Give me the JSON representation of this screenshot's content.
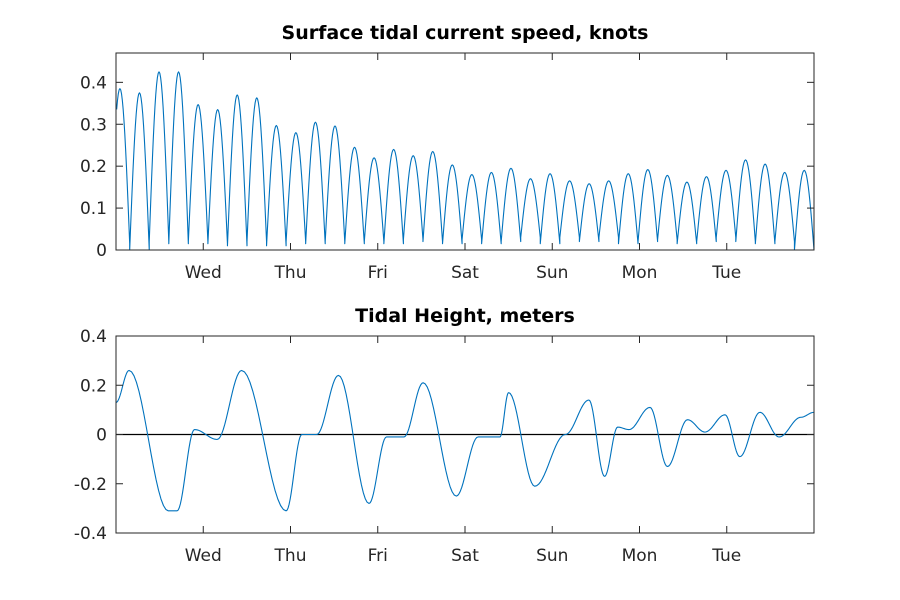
{
  "chart_data": [
    {
      "type": "line",
      "title": "Surface tidal current speed, knots",
      "xlabel": "",
      "ylabel": "",
      "ylim": [
        0,
        0.47
      ],
      "yticks": [
        "0",
        "0.1",
        "0.2",
        "0.3",
        "0.4"
      ],
      "x_tick_labels": [
        "Wed",
        "Thu",
        "Fri",
        "Sat",
        "Sun",
        "Mon",
        "Tue"
      ],
      "x_unit": "days",
      "xlim": [
        0,
        8
      ],
      "grid": false,
      "color": "#0072BD",
      "series": [
        {
          "peaks": [
            0.385,
            0.375,
            0.425,
            0.425,
            0.347,
            0.335,
            0.37,
            0.363,
            0.297,
            0.28,
            0.305,
            0.296,
            0.245,
            0.22,
            0.24,
            0.225,
            0.235,
            0.203,
            0.18,
            0.185,
            0.195,
            0.17,
            0.182,
            0.165,
            0.158,
            0.165,
            0.182,
            0.192,
            0.178,
            0.162,
            0.175,
            0.19,
            0.215,
            0.205,
            0.185,
            0.19
          ],
          "troughs": [
            0.015,
            0.0,
            0.02,
            0.015,
            0.02,
            0.015,
            0.01,
            0.02,
            0.01,
            0.02,
            0.015,
            0.02,
            0.015,
            0.02,
            0.015,
            0.025,
            0.02,
            0.015,
            0.025,
            0.015,
            0.02,
            0.03,
            0.015,
            0.03,
            0.02,
            0.03,
            0.015,
            0.02,
            0.025,
            0.015,
            0.02,
            0.03,
            0.02,
            0.015,
            0.02,
            0.0
          ]
        }
      ]
    },
    {
      "type": "line",
      "title": "Tidal Height, meters",
      "xlabel": "",
      "ylabel": "",
      "ylim": [
        -0.4,
        0.4
      ],
      "yticks": [
        "-0.4",
        "-0.2",
        "0",
        "0.2",
        "0.4"
      ],
      "x_tick_labels": [
        "Wed",
        "Thu",
        "Fri",
        "Sat",
        "Sun",
        "Mon",
        "Tue"
      ],
      "x_unit": "days",
      "xlim": [
        0,
        8
      ],
      "zero_line": true,
      "grid": false,
      "color": "#0072BD",
      "series": [
        {
          "x": [
            0.0,
            0.15,
            0.6,
            0.7,
            0.9,
            1.16,
            1.44,
            1.95,
            2.13,
            2.3,
            2.55,
            2.9,
            3.1,
            3.3,
            3.52,
            3.9,
            4.15,
            4.4,
            4.5,
            4.8,
            5.15,
            5.42,
            5.6,
            5.75,
            5.88,
            6.12,
            6.32,
            6.55,
            6.75,
            6.98,
            7.15,
            7.38,
            7.6,
            7.85,
            8.0
          ],
          "y": [
            0.13,
            0.26,
            -0.31,
            -0.31,
            0.02,
            -0.02,
            0.26,
            -0.31,
            0.0,
            0.0,
            0.24,
            -0.28,
            -0.01,
            -0.01,
            0.21,
            -0.25,
            -0.01,
            -0.01,
            0.17,
            -0.21,
            0.0,
            0.14,
            -0.17,
            0.03,
            0.02,
            0.11,
            -0.13,
            0.06,
            0.01,
            0.08,
            -0.09,
            0.09,
            -0.01,
            0.07,
            0.09
          ]
        }
      ]
    }
  ]
}
